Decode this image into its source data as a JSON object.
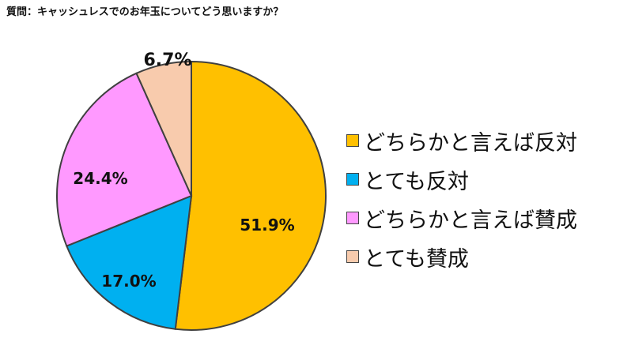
{
  "question": "質問：キャッシュレスでのお年玉についてどう思いますか？",
  "chart_data": {
    "type": "pie",
    "title": "",
    "slices": [
      {
        "name": "どちらかと言えば反対",
        "value": 51.9,
        "label": "51.9%",
        "color": "#FFC000"
      },
      {
        "name": "とても反対",
        "value": 17.0,
        "label": "17.0%",
        "color": "#00B0F0"
      },
      {
        "name": "どちらかと言えば賛成",
        "value": 24.4,
        "label": "24.4%",
        "color": "#FF99FF"
      },
      {
        "name": "とても賛成",
        "value": 6.7,
        "label": "6.7%",
        "color": "#F8CBAD"
      }
    ],
    "start": "12 o'clock",
    "direction": "clockwise",
    "legend": "right"
  }
}
